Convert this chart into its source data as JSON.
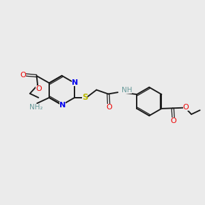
{
  "bg": "#ebebeb",
  "bc": "#1a1a1a",
  "Nc": "#0000ee",
  "Oc": "#ee0000",
  "Sc": "#bbbb00",
  "NHc": "#669999",
  "lw": 1.4,
  "lw2": 0.9,
  "fs": 7.5,
  "figsize": [
    3.0,
    3.0
  ],
  "dpi": 100,
  "xlim": [
    0,
    10
  ],
  "ylim": [
    0,
    10
  ]
}
